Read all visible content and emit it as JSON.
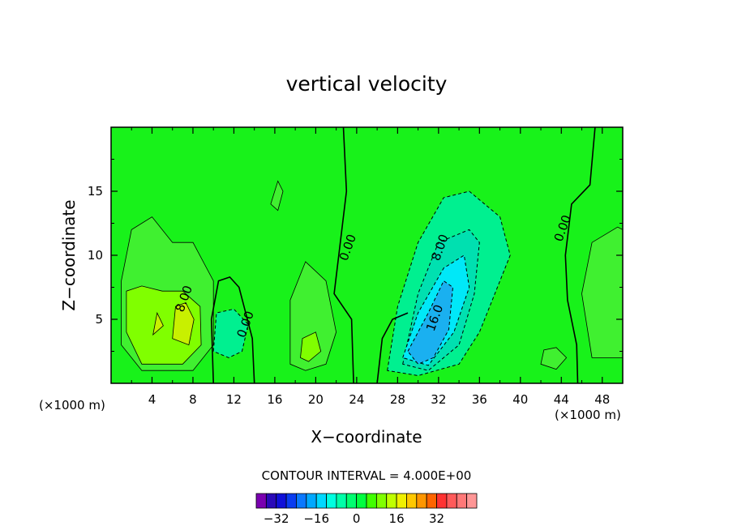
{
  "chart_data": {
    "type": "heatmap",
    "title": "vertical velocity",
    "xlabel": "X−coordinate",
    "ylabel": "Z−coordinate",
    "x_unit_label": "(×1000 m)",
    "y_unit_label": "(×1000 m)",
    "xlim": [
      0,
      50
    ],
    "ylim": [
      0,
      20
    ],
    "x_ticks": [
      4,
      8,
      12,
      16,
      20,
      24,
      28,
      32,
      36,
      40,
      44,
      48
    ],
    "y_ticks": [
      5,
      10,
      15
    ],
    "contour_interval_text": "CONTOUR INTERVAL = 4.000E+00",
    "contour_labels": [
      {
        "text": "8.00",
        "x": 7.5,
        "y": 6.5
      },
      {
        "text": "0.00",
        "x": 13.5,
        "y": 4.5
      },
      {
        "text": "0.00",
        "x": 23.5,
        "y": 10.5
      },
      {
        "text": "8.00",
        "x": 32.5,
        "y": 10.5
      },
      {
        "text": "16.0",
        "x": 32.0,
        "y": 5.0
      },
      {
        "text": "0.00",
        "x": 44.5,
        "y": 12.0
      }
    ],
    "colorbar": {
      "tick_labels": [
        "−32",
        "−16",
        "0",
        "16",
        "32"
      ],
      "tick_values": [
        -32,
        -16,
        0,
        16,
        32
      ],
      "colors": [
        "#7a00b0",
        "#2a0ab8",
        "#1010d8",
        "#0a3cf0",
        "#0a78ff",
        "#00a8ff",
        "#00d8ff",
        "#00ffe0",
        "#00ffa8",
        "#00ff70",
        "#00ff40",
        "#40ff00",
        "#80ff00",
        "#c0ff00",
        "#f0f000",
        "#ffc800",
        "#ff9600",
        "#ff6400",
        "#ff3232",
        "#ff5a5a",
        "#ff7878",
        "#ff9696"
      ]
    },
    "colors": {
      "background_field": "#18f21a",
      "weak_updraft": "#40f030",
      "moderate_updraft": "#80ff00",
      "strong_updraft": "#c8f000",
      "weak_downdraft": "#00f090",
      "moderate_downdraft": "#00e0b0",
      "strong_downdraft": "#00e8f8",
      "core_downdraft": "#1ab0f0"
    }
  }
}
